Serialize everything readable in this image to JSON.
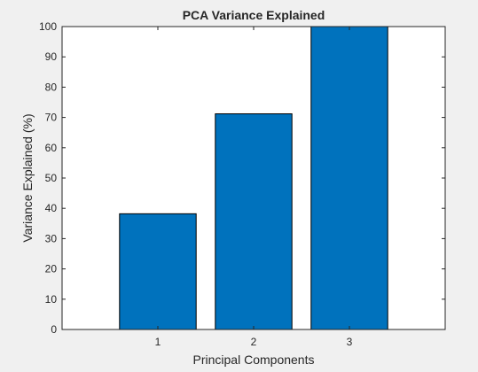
{
  "chart_data": {
    "type": "bar",
    "title": "PCA Variance Explained",
    "xlabel": "Principal Components",
    "ylabel": "Variance Explained (%)",
    "categories": [
      "1",
      "2",
      "3"
    ],
    "values": [
      38.2,
      71.2,
      100
    ],
    "xlim": [
      0,
      4
    ],
    "ylim": [
      0,
      100
    ],
    "yticks": [
      0,
      10,
      20,
      30,
      40,
      50,
      60,
      70,
      80,
      90,
      100
    ],
    "grid": false,
    "legend": "none",
    "bar_color": "#0072bd",
    "bar_edge_color": "#000000",
    "axes_background": "#ffffff",
    "figure_background": "#f0f0f0"
  }
}
